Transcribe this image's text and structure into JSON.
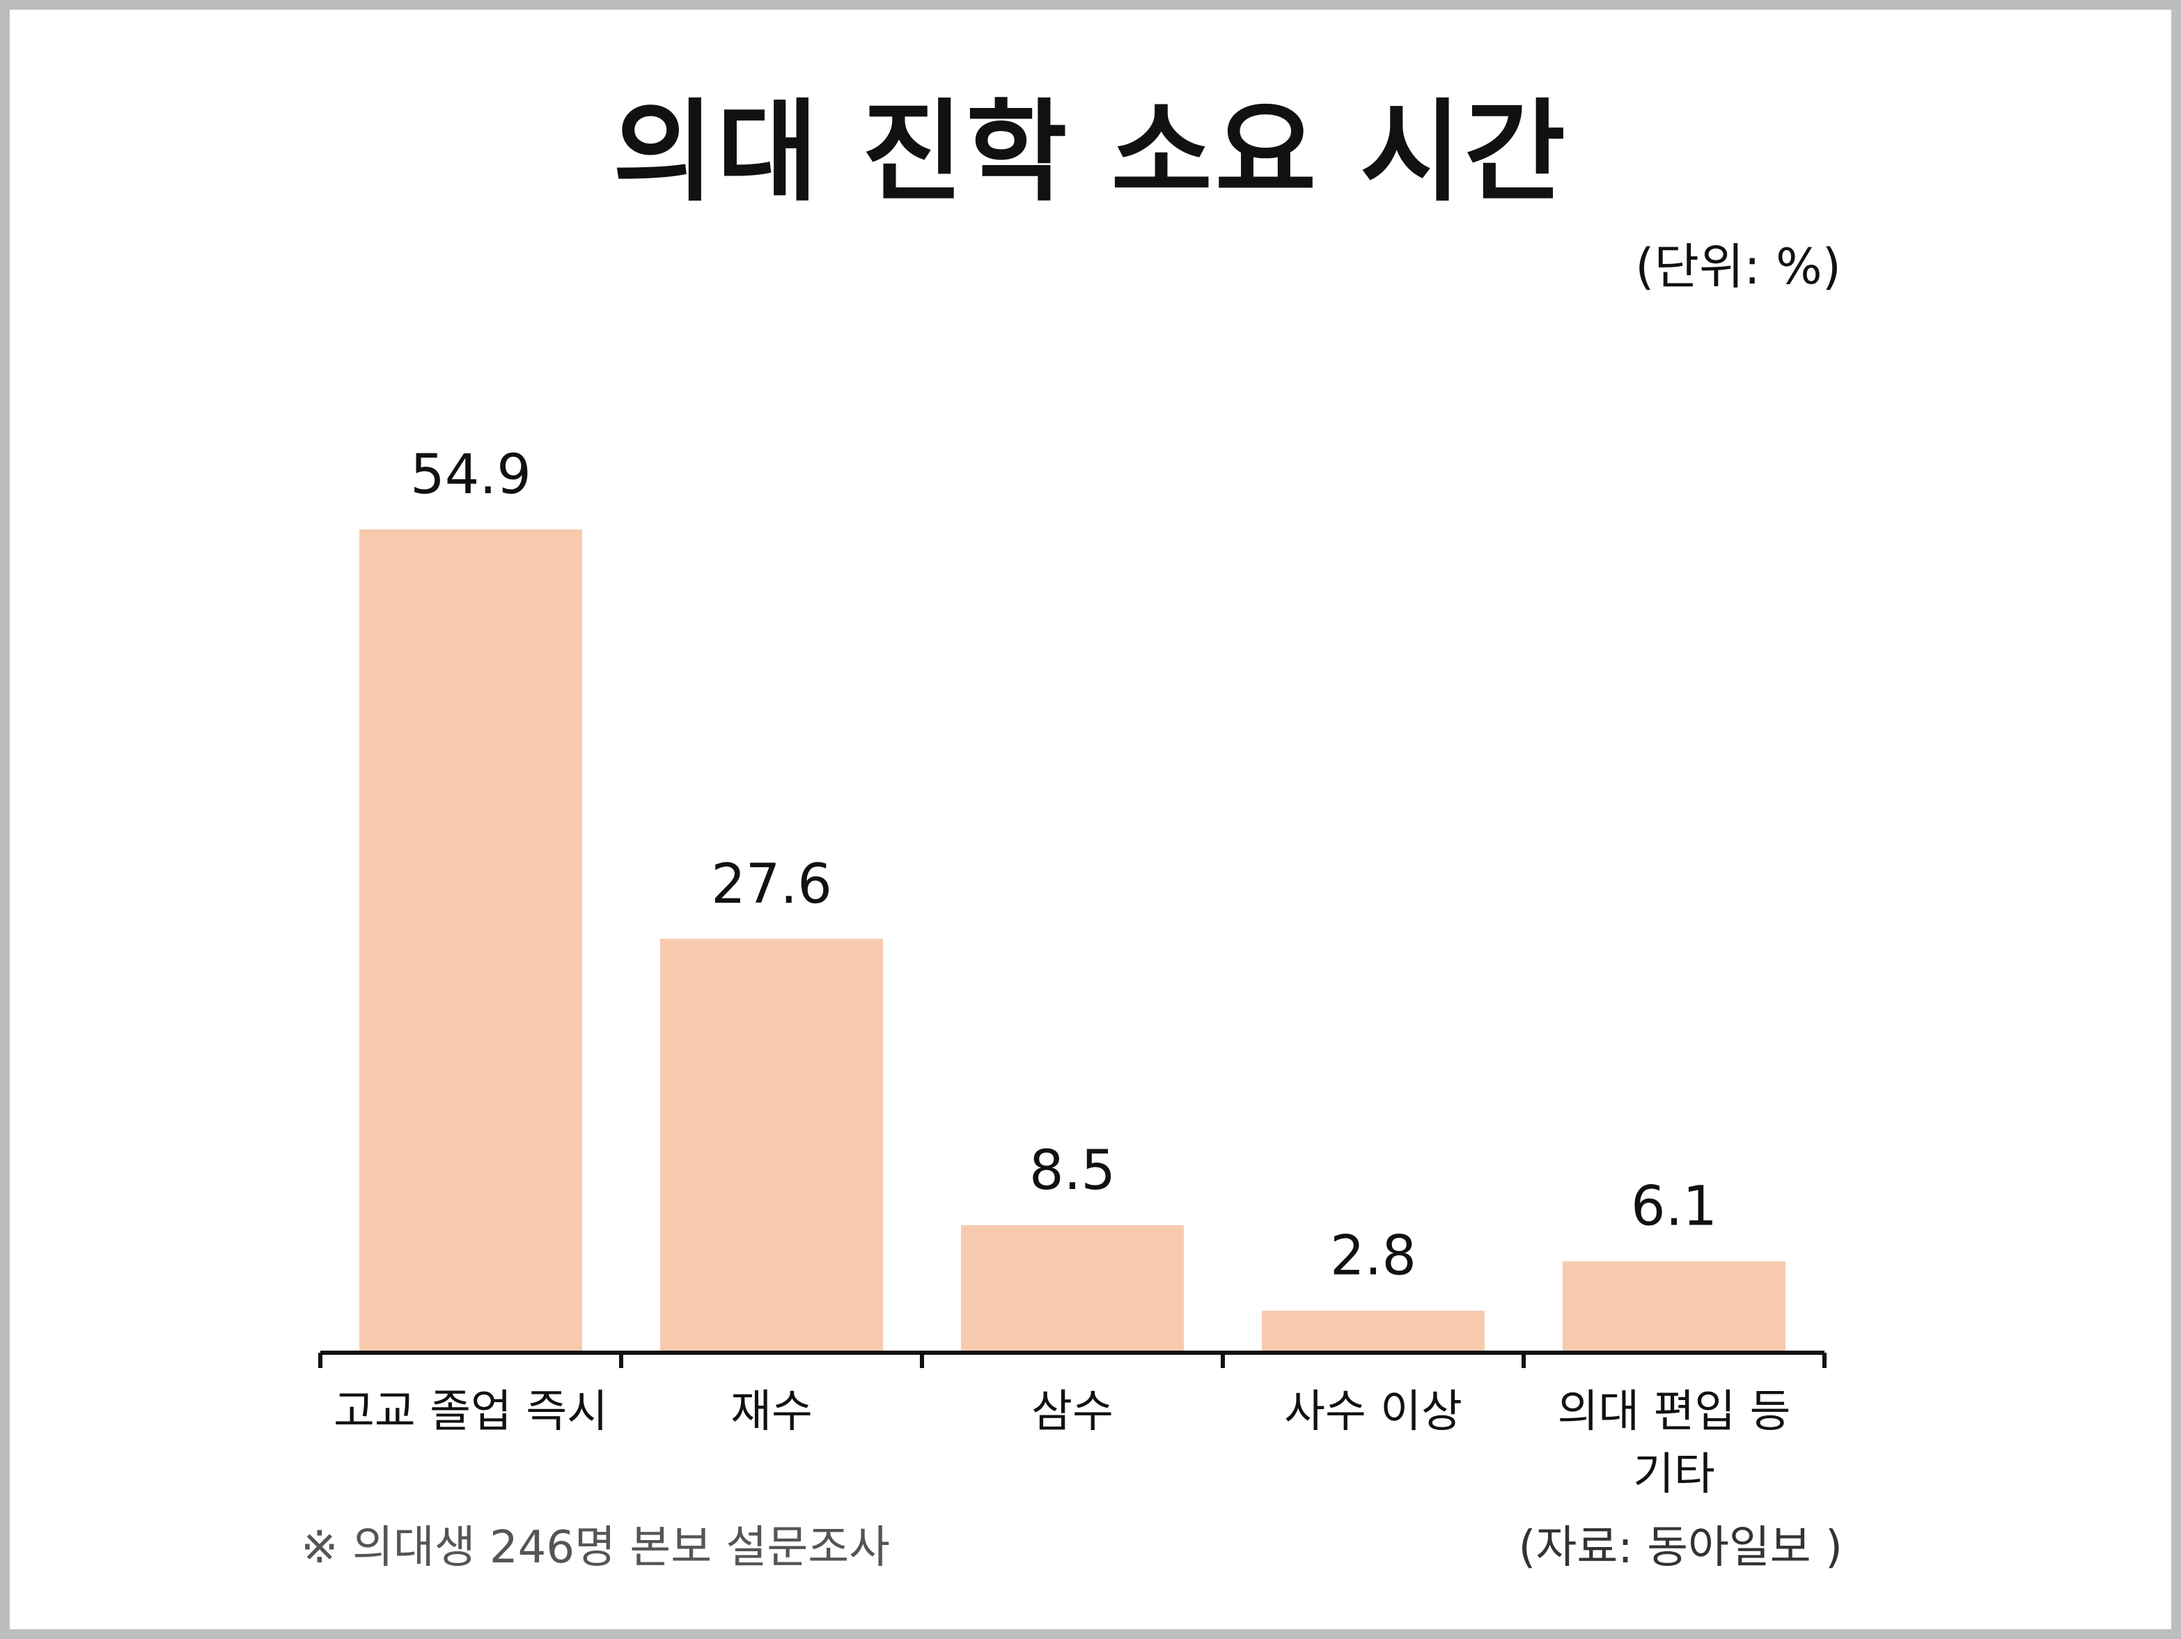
{
  "title": "의대 진학 소요 시간",
  "unit_label": "(단위: %)",
  "footnote": "※ 의대생 246명 본보 설문조사",
  "source": "(자료: 동아일보 )",
  "chart_data": {
    "type": "bar",
    "title": "의대 진학 소요 시간",
    "categories": [
      "고교 졸업 즉시",
      "재수",
      "삼수",
      "사수 이상",
      "의대 편입 등 기타"
    ],
    "category_lines": [
      [
        "고교 졸업 즉시"
      ],
      [
        "재수"
      ],
      [
        "삼수"
      ],
      [
        "사수 이상"
      ],
      [
        "의대 편입 등",
        "기타"
      ]
    ],
    "values": [
      54.9,
      27.6,
      8.5,
      2.8,
      6.1
    ],
    "value_labels": [
      "54.9",
      "27.6",
      "8.5",
      "2.8",
      "6.1"
    ],
    "ylim": [
      0,
      54.9
    ],
    "bar_color": "#f7caad",
    "grid": false,
    "legend": "none"
  }
}
